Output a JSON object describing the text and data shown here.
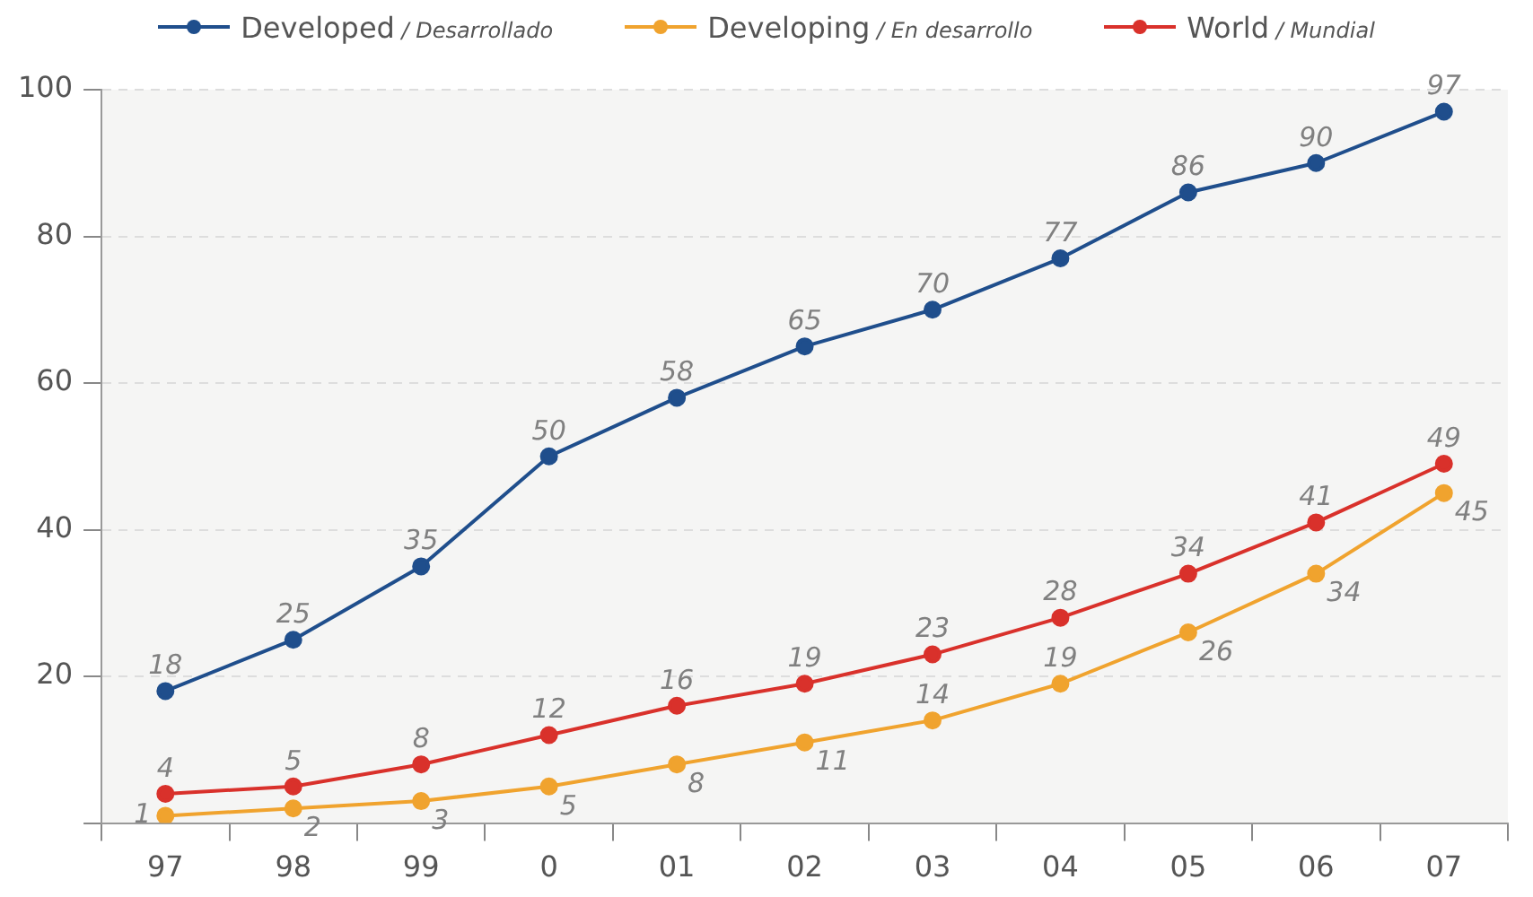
{
  "chart_data": {
    "type": "line",
    "categories": [
      "97",
      "98",
      "99",
      "0",
      "01",
      "02",
      "03",
      "04",
      "05",
      "06",
      "07"
    ],
    "series": [
      {
        "name": "Developed / Desarrollado",
        "color": "#1f4e8c",
        "values": [
          18,
          25,
          35,
          50,
          58,
          65,
          70,
          77,
          86,
          90,
          97
        ]
      },
      {
        "name": "Developing / En desarrollo",
        "color": "#f0a32e",
        "values": [
          1,
          2,
          3,
          5,
          8,
          11,
          14,
          19,
          26,
          34,
          45
        ]
      },
      {
        "name": "World / Mundial",
        "color": "#d9312b",
        "values": [
          4,
          5,
          8,
          12,
          16,
          19,
          23,
          28,
          34,
          41,
          49
        ]
      }
    ],
    "ylim": [
      0,
      100
    ],
    "yticks": [
      {
        "value": 0,
        "label": null
      },
      20,
      40,
      60,
      80,
      100
    ],
    "grid": "y",
    "legend": "top",
    "marker": "circle",
    "line_style": "solid",
    "data_labels": true
  }
}
